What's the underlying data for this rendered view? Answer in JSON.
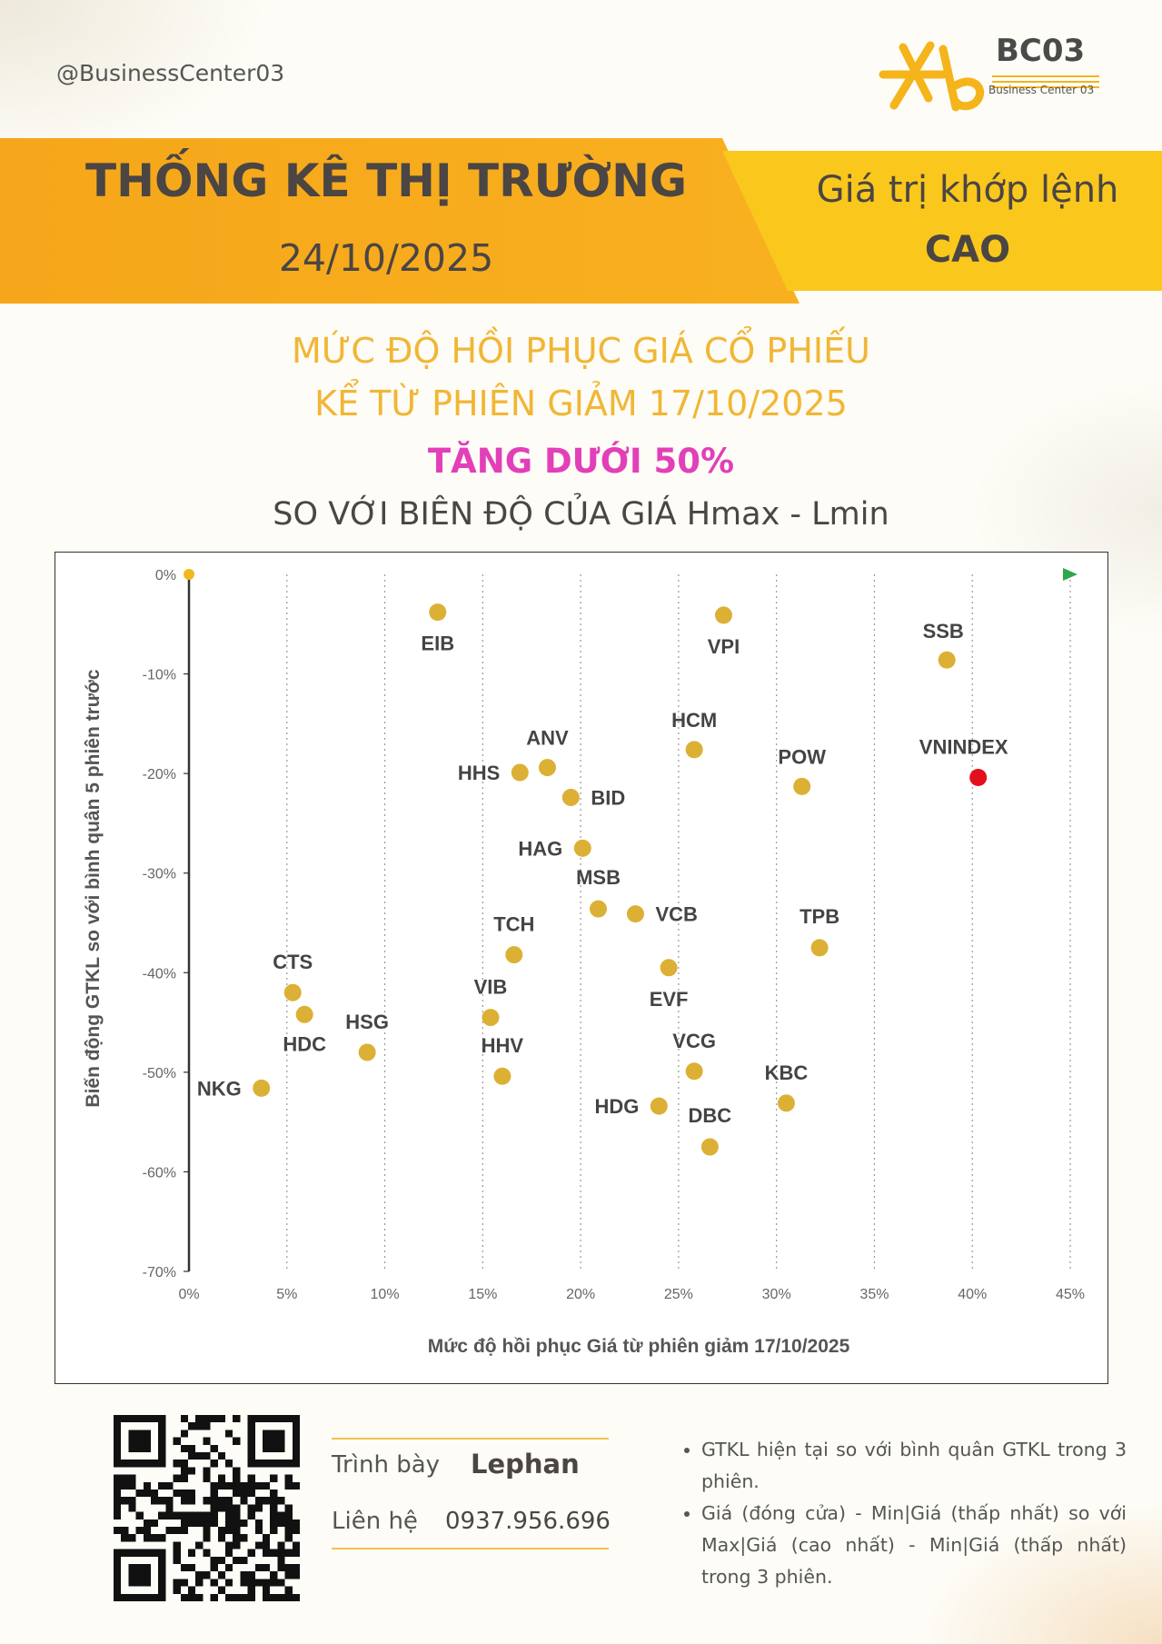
{
  "header": {
    "handle": "@BusinessCenter03",
    "logo_name": "BC03",
    "logo_sub": "Business Center 03",
    "title": "THỐNG KÊ THỊ TRƯỜNG",
    "date": "24/10/2025",
    "right_line1": "Giá trị khớp lệnh",
    "right_line2": "CAO"
  },
  "subtitle": {
    "line1": "MỨC ĐỘ HỒI PHỤC GIÁ CỔ PHIẾU",
    "line2": "KỂ TỪ PHIÊN GIẢM 17/10/2025",
    "highlight": "TĂNG DƯỚI 50%",
    "line4": "SO VỚI BIÊN ĐỘ CỦA GIÁ Hmax - Lmin"
  },
  "colors": {
    "band_orange": "#f6a61a",
    "band_yellow": "#fac71c",
    "subtitle_gold": "#f1b635",
    "highlight_magenta": "#e23fb9",
    "point_gold": "#dcb034",
    "vnindex_red": "#e3101c",
    "vnindex_label_green": "#1aa64a",
    "arrow_green": "#2ea84a"
  },
  "chart_data": {
    "type": "scatter",
    "xlabel": "Mức độ hồi phục Giá từ phiên giảm 17/10/2025",
    "ylabel": "Biến động GTKL so với bình quân 5 phiên trước",
    "xlim": [
      0,
      45
    ],
    "ylim": [
      -70,
      0
    ],
    "x_ticks": [
      "0%",
      "5%",
      "10%",
      "15%",
      "20%",
      "25%",
      "30%",
      "35%",
      "40%",
      "45%"
    ],
    "y_ticks": [
      "0%",
      "-10%",
      "-20%",
      "-30%",
      "-40%",
      "-50%",
      "-60%",
      "-70%"
    ],
    "grid": "vertical dotted",
    "points": [
      {
        "name": "EIB",
        "x": 12.7,
        "y": -3.8
      },
      {
        "name": "VPI",
        "x": 27.3,
        "y": -4.1
      },
      {
        "name": "SSB",
        "x": 38.7,
        "y": -8.6
      },
      {
        "name": "HCM",
        "x": 25.8,
        "y": -17.6
      },
      {
        "name": "ANV",
        "x": 18.3,
        "y": -19.4
      },
      {
        "name": "HHS",
        "x": 16.9,
        "y": -19.9
      },
      {
        "name": "POW",
        "x": 31.3,
        "y": -21.3
      },
      {
        "name": "VNINDEX",
        "x": 40.3,
        "y": -20.4
      },
      {
        "name": "BID",
        "x": 19.5,
        "y": -22.4
      },
      {
        "name": "HAG",
        "x": 20.1,
        "y": -27.5
      },
      {
        "name": "MSB",
        "x": 20.9,
        "y": -33.6
      },
      {
        "name": "VCB",
        "x": 22.8,
        "y": -34.1
      },
      {
        "name": "TCH",
        "x": 16.6,
        "y": -38.2
      },
      {
        "name": "TPB",
        "x": 32.2,
        "y": -37.5
      },
      {
        "name": "EVF",
        "x": 24.5,
        "y": -39.5
      },
      {
        "name": "CTS",
        "x": 5.3,
        "y": -42.0
      },
      {
        "name": "HDC",
        "x": 5.9,
        "y": -44.2
      },
      {
        "name": "VIB",
        "x": 15.4,
        "y": -44.5
      },
      {
        "name": "HSG",
        "x": 9.1,
        "y": -48.0
      },
      {
        "name": "HHV",
        "x": 16.0,
        "y": -50.4
      },
      {
        "name": "VCG",
        "x": 25.8,
        "y": -49.9
      },
      {
        "name": "NKG",
        "x": 3.7,
        "y": -51.6
      },
      {
        "name": "HDG",
        "x": 24.0,
        "y": -53.4
      },
      {
        "name": "KBC",
        "x": 30.5,
        "y": -53.1
      },
      {
        "name": "DBC",
        "x": 26.6,
        "y": -57.5
      }
    ]
  },
  "footer": {
    "qr_icon": "qr-code-icon",
    "presenter_label": "Trình bày",
    "presenter_name": "Lephan",
    "contact_label": "Liên hệ",
    "contact_phone": "0937.956.696",
    "notes": [
      "GTKL hiện tại so với bình quân GTKL trong 3 phiên.",
      "Giá (đóng cửa) - Min|Giá (thấp nhất) so với Max|Giá (cao nhất) - Min|Giá (thấp nhất) trong 3 phiên."
    ]
  }
}
